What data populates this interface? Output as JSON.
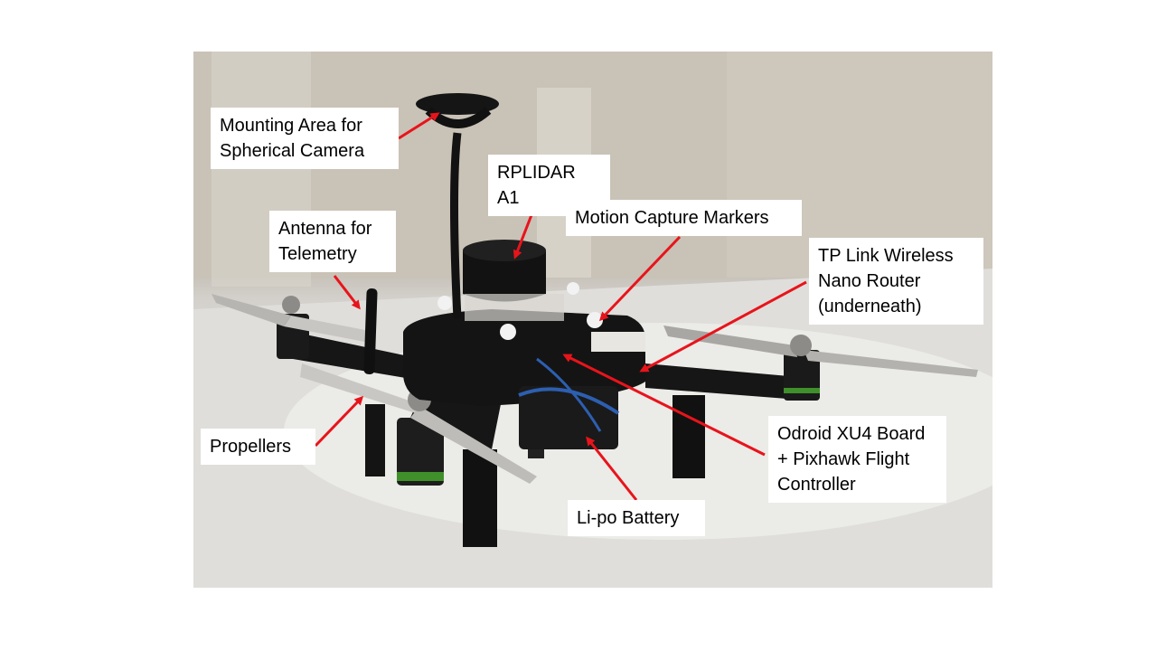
{
  "labels": {
    "mounting_area": "Mounting Area for\nSpherical Camera",
    "rplidar": "RPLIDAR A1",
    "antenna": "Antenna for\nTelemetry",
    "motion_capture": "Motion Capture Markers",
    "tp_link": "TP Link Wireless\nNano Router\n(underneath)",
    "propellers": "Propellers",
    "odroid": "Odroid XU4 Board\n+ Pixhawk Flight\nController",
    "battery": "Li-po Battery"
  },
  "colors": {
    "arrow": "#e8141b",
    "label_bg": "#ffffff",
    "drone_body": "#151515"
  }
}
